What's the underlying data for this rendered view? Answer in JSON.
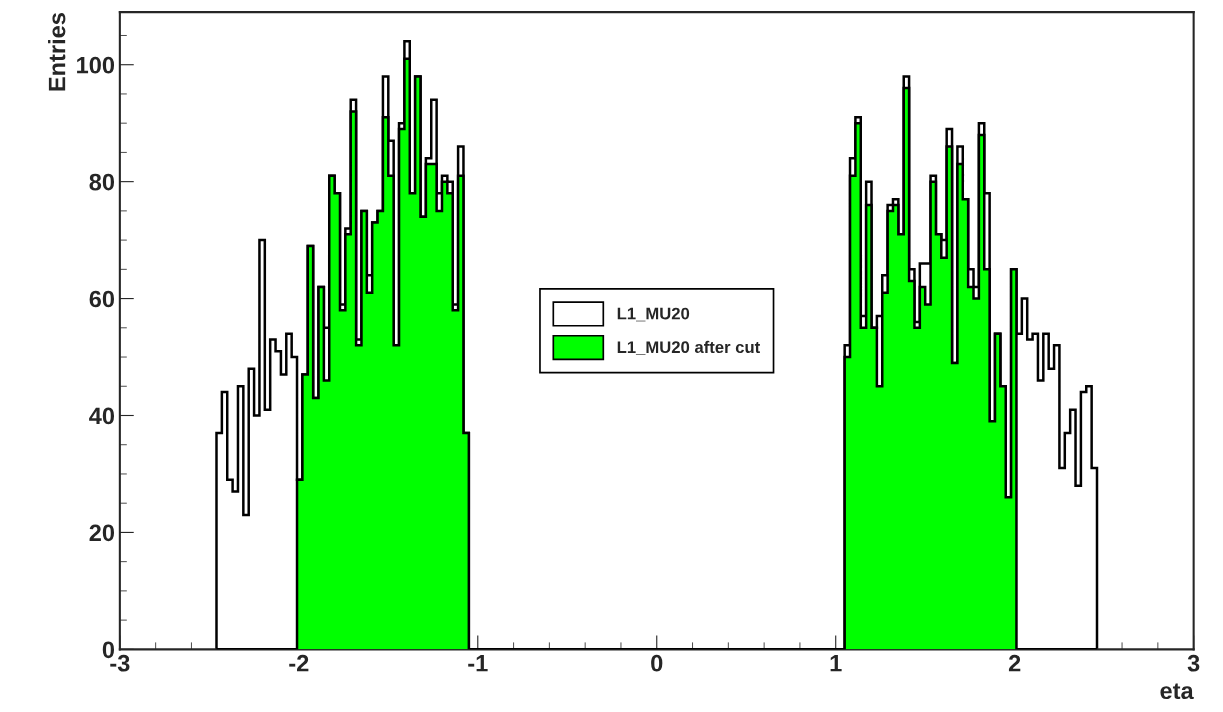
{
  "chart_data": {
    "type": "histogram",
    "xlabel": "eta",
    "ylabel": "Entries",
    "bins": [
      -2.46,
      -2.43,
      -2.4,
      -2.37,
      -2.34,
      -2.31,
      -2.28,
      -2.25,
      -2.22,
      -2.19,
      -2.16,
      -2.13,
      -2.1,
      -2.07,
      -2.04,
      -2.01,
      -1.98,
      -1.95,
      -1.92,
      -1.89,
      -1.86,
      -1.83,
      -1.8,
      -1.77,
      -1.74,
      -1.71,
      -1.68,
      -1.65,
      -1.62,
      -1.59,
      -1.56,
      -1.53,
      -1.5,
      -1.47,
      -1.44,
      -1.41,
      -1.38,
      -1.35,
      -1.32,
      -1.29,
      -1.26,
      -1.23,
      -1.2,
      -1.17,
      -1.14,
      -1.11,
      -1.08,
      -1.05,
      -1.02,
      -0.99,
      -0.96,
      -0.93,
      -0.9,
      -0.87,
      -0.84,
      -0.81,
      -0.78,
      -0.75,
      -0.72,
      -0.69,
      -0.66,
      -0.63,
      -0.6,
      -0.57,
      -0.54,
      -0.51,
      -0.48,
      -0.45,
      -0.42,
      -0.39,
      -0.36,
      -0.33,
      -0.3,
      -0.27,
      -0.24,
      -0.21,
      -0.18,
      -0.15,
      -0.12,
      -0.09,
      -0.06,
      -0.03,
      0.0,
      0.03,
      0.06,
      0.09,
      0.12,
      0.15,
      0.18,
      0.21,
      0.24,
      0.27,
      0.3,
      0.33,
      0.36,
      0.39,
      0.42,
      0.45,
      0.48,
      0.51,
      0.54,
      0.57,
      0.6,
      0.63,
      0.66,
      0.69,
      0.72,
      0.75,
      0.78,
      0.81,
      0.84,
      0.87,
      0.9,
      0.93,
      0.96,
      0.99,
      1.02,
      1.05,
      1.08,
      1.11,
      1.14,
      1.17,
      1.2,
      1.23,
      1.26,
      1.29,
      1.32,
      1.35,
      1.38,
      1.41,
      1.44,
      1.47,
      1.5,
      1.53,
      1.56,
      1.59,
      1.62,
      1.65,
      1.68,
      1.71,
      1.74,
      1.77,
      1.8,
      1.83,
      1.86,
      1.89,
      1.92,
      1.95,
      1.98,
      2.01,
      2.04,
      2.07,
      2.1,
      2.13,
      2.16,
      2.19,
      2.22,
      2.25,
      2.28,
      2.31,
      2.34,
      2.37,
      2.4,
      2.43,
      2.46
    ],
    "series": [
      {
        "name": "L1_MU20",
        "color": "#ffffff",
        "values": [
          37,
          44,
          29,
          27,
          45,
          23,
          48,
          40,
          70,
          41,
          53,
          51,
          47,
          54,
          50,
          29,
          47,
          69,
          43,
          62,
          55,
          81,
          78,
          59,
          72,
          94,
          53,
          75,
          64,
          73,
          75,
          98,
          87,
          52,
          90,
          104,
          78,
          98,
          74,
          84,
          94,
          78,
          81,
          80,
          59,
          86,
          37,
          0,
          0,
          0,
          0,
          0,
          0,
          0,
          0,
          0,
          0,
          0,
          0,
          0,
          0,
          0,
          0,
          0,
          0,
          0,
          0,
          0,
          0,
          0,
          0,
          0,
          0,
          0,
          0,
          0,
          0,
          0,
          0,
          0,
          0,
          0,
          0,
          0,
          0,
          0,
          0,
          0,
          0,
          0,
          0,
          0,
          0,
          0,
          0,
          0,
          0,
          0,
          0,
          0,
          0,
          0,
          0,
          0,
          0,
          0,
          0,
          0,
          0,
          0,
          0,
          0,
          0,
          0,
          0,
          0,
          0,
          52,
          84,
          91,
          57,
          80,
          55,
          57,
          64,
          76,
          77,
          71,
          98,
          65,
          56,
          66,
          66,
          81,
          71,
          70,
          89,
          49,
          86,
          77,
          65,
          62,
          90,
          78,
          39,
          54,
          45,
          26,
          65,
          54,
          60,
          53,
          54,
          46,
          54,
          48,
          52,
          31,
          37,
          41,
          28,
          44,
          45,
          31
        ]
      },
      {
        "name": "L1_MU20 after cut",
        "color": "#00ff00",
        "values": [
          0,
          0,
          0,
          0,
          0,
          0,
          0,
          0,
          0,
          0,
          0,
          0,
          0,
          0,
          0,
          29,
          47,
          69,
          43,
          62,
          46,
          81,
          78,
          58,
          71,
          92,
          52,
          75,
          61,
          73,
          75,
          91,
          81,
          52,
          89,
          101,
          78,
          98,
          74,
          83,
          83,
          75,
          80,
          78,
          58,
          81,
          37,
          0,
          0,
          0,
          0,
          0,
          0,
          0,
          0,
          0,
          0,
          0,
          0,
          0,
          0,
          0,
          0,
          0,
          0,
          0,
          0,
          0,
          0,
          0,
          0,
          0,
          0,
          0,
          0,
          0,
          0,
          0,
          0,
          0,
          0,
          0,
          0,
          0,
          0,
          0,
          0,
          0,
          0,
          0,
          0,
          0,
          0,
          0,
          0,
          0,
          0,
          0,
          0,
          0,
          0,
          0,
          0,
          0,
          0,
          0,
          0,
          0,
          0,
          0,
          0,
          0,
          0,
          0,
          0,
          0,
          0,
          50,
          81,
          90,
          55,
          76,
          55,
          45,
          61,
          75,
          76,
          71,
          96,
          63,
          55,
          62,
          59,
          80,
          71,
          67,
          86,
          49,
          83,
          77,
          62,
          60,
          88,
          65,
          39,
          54,
          45,
          26,
          65,
          0,
          0,
          0,
          0,
          0,
          0,
          0,
          0,
          0,
          0,
          0,
          0,
          0,
          0,
          0
        ]
      }
    ],
    "xlim": [
      -3,
      3
    ],
    "ylim": [
      0,
      109
    ],
    "xticks": [
      -3,
      -2,
      -1,
      0,
      1,
      2,
      3
    ],
    "yticks": [
      0,
      20,
      40,
      60,
      80,
      100
    ],
    "grid": false,
    "legend": "center"
  }
}
